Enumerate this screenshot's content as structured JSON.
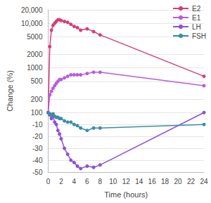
{
  "chart_data": {
    "type": "line",
    "x_label": "Time (hours)",
    "y_label": "Change (%)",
    "x": [
      0,
      0.25,
      0.5,
      0.75,
      1,
      1.25,
      1.5,
      1.75,
      2,
      2.5,
      3,
      3.5,
      4,
      4.5,
      5,
      6,
      7,
      8,
      24
    ],
    "series": [
      {
        "name": "E2",
        "color": "#d43f7a",
        "values": [
          100,
          3000,
          7000,
          9000,
          10000,
          11000,
          12000,
          12000,
          11500,
          11000,
          10500,
          9500,
          8500,
          8000,
          7000,
          7500,
          6500,
          5500,
          650
        ]
      },
      {
        "name": "E1",
        "color": "#b85ce0",
        "values": [
          100,
          250,
          300,
          350,
          400,
          450,
          500,
          550,
          550,
          600,
          650,
          700,
          700,
          700,
          700,
          750,
          800,
          800,
          400
        ]
      },
      {
        "name": "LH",
        "color": "#8e4fd6",
        "values": [
          100,
          -2,
          -5,
          -3,
          -8,
          -10,
          -15,
          -18,
          -22,
          -30,
          -35,
          -40,
          -42,
          -45,
          -47,
          -45,
          -46,
          -44,
          100
        ]
      },
      {
        "name": "FSH",
        "color": "#3a8ea8",
        "values": [
          100,
          -1,
          -2,
          -1,
          -3,
          -4,
          -4,
          -5,
          -5,
          -7,
          -8,
          -8,
          -10,
          -11,
          -13,
          -15,
          -13,
          -13,
          -10
        ]
      }
    ],
    "xlim": [
      0,
      24
    ],
    "xticks": [
      0,
      2,
      4,
      6,
      8,
      10,
      12,
      14,
      16,
      18,
      20,
      22,
      24
    ],
    "ylim": [
      -50,
      20000
    ],
    "yticks": [
      -50,
      -40,
      -30,
      -20,
      -10,
      100,
      200,
      500,
      1000,
      2000,
      5000,
      {
        "value": 10000,
        "label": "10,000"
      },
      {
        "value": 20000,
        "label": "20,000"
      }
    ],
    "grid": true,
    "legend": "top-right",
    "marker": "circle",
    "line_style": "solid"
  }
}
